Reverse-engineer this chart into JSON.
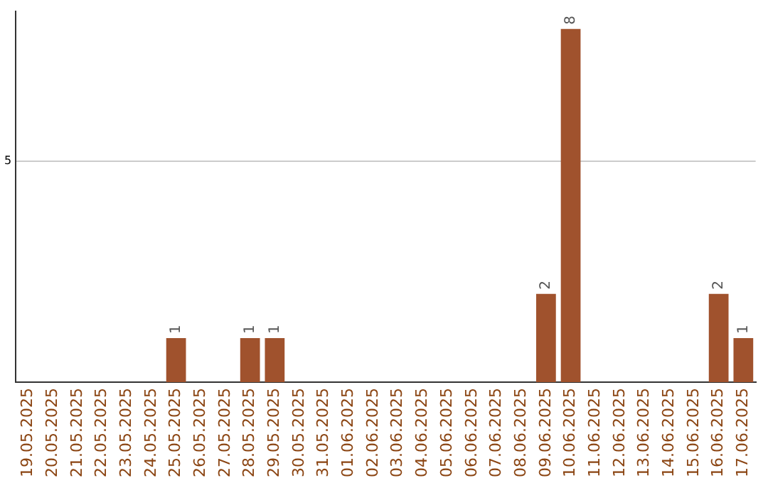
{
  "chart_data": {
    "type": "bar",
    "categories": [
      "19.05.2025",
      "20.05.2025",
      "21.05.2025",
      "22.05.2025",
      "23.05.2025",
      "24.05.2025",
      "25.05.2025",
      "26.05.2025",
      "27.05.2025",
      "28.05.2025",
      "29.05.2025",
      "30.05.2025",
      "31.05.2025",
      "01.06.2025",
      "02.06.2025",
      "03.06.2025",
      "04.06.2025",
      "05.06.2025",
      "06.06.2025",
      "07.06.2025",
      "08.06.2025",
      "09.06.2025",
      "10.06.2025",
      "11.06.2025",
      "12.06.2025",
      "13.06.2025",
      "14.06.2025",
      "15.06.2025",
      "16.06.2025",
      "17.06.2025"
    ],
    "values": [
      0,
      0,
      0,
      0,
      0,
      0,
      1,
      0,
      0,
      1,
      1,
      0,
      0,
      0,
      0,
      0,
      0,
      0,
      0,
      0,
      0,
      2,
      8,
      0,
      0,
      0,
      0,
      0,
      2,
      1
    ],
    "value_labels": [
      null,
      null,
      null,
      null,
      null,
      null,
      "1",
      null,
      null,
      "1",
      "1",
      null,
      null,
      null,
      null,
      null,
      null,
      null,
      null,
      null,
      null,
      "2",
      "8",
      null,
      null,
      null,
      null,
      null,
      "2",
      "1"
    ],
    "color": "#a0522d",
    "ylim": [
      0,
      8.4
    ],
    "yticks": [
      5
    ],
    "grid": "y",
    "legend": false
  }
}
